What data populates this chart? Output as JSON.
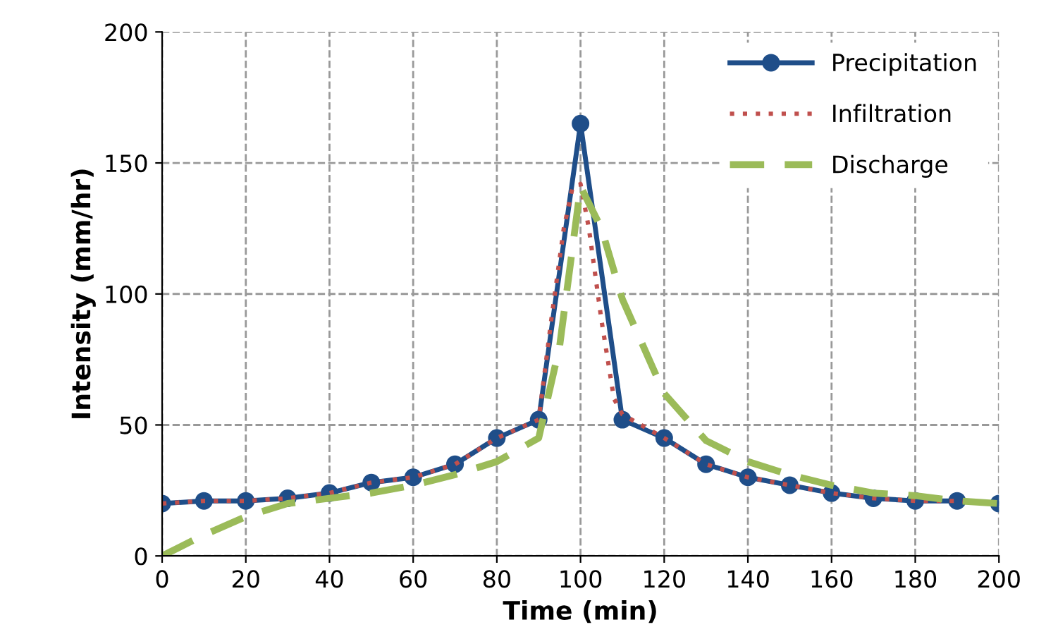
{
  "chart_data": {
    "type": "line",
    "xlabel": "Time (min)",
    "ylabel": "Intensity (mm/hr)",
    "xlim": [
      0,
      200
    ],
    "ylim": [
      0,
      200
    ],
    "xticks": [
      0,
      20,
      40,
      60,
      80,
      100,
      120,
      140,
      160,
      180,
      200
    ],
    "yticks": [
      0,
      50,
      100,
      150,
      200
    ],
    "grid": true,
    "legend": "top right",
    "series": [
      {
        "name": "Precipitation",
        "color": "#1f4e89",
        "marker": "circle",
        "line_style": "solid",
        "x": [
          0,
          10,
          20,
          30,
          40,
          50,
          60,
          70,
          80,
          90,
          100,
          110,
          120,
          130,
          140,
          150,
          160,
          170,
          180,
          190,
          200
        ],
        "values": [
          20,
          21,
          21,
          22,
          24,
          28,
          30,
          35,
          45,
          52,
          165,
          52,
          45,
          35,
          30,
          27,
          24,
          22,
          21,
          21,
          20
        ]
      },
      {
        "name": "Infiltration",
        "color": "#c0504d",
        "marker": "none",
        "line_style": "dotted",
        "x": [
          0,
          10,
          20,
          30,
          40,
          50,
          60,
          70,
          80,
          90,
          93,
          96,
          98,
          100,
          102,
          105,
          108,
          110,
          120,
          130,
          140,
          150,
          160,
          170,
          180,
          190,
          200
        ],
        "values": [
          20,
          21,
          21,
          22,
          24,
          28,
          30,
          35,
          45,
          52,
          90,
          125,
          140,
          142,
          125,
          90,
          60,
          54,
          45,
          35,
          30,
          27,
          24,
          22,
          21,
          21,
          20
        ]
      },
      {
        "name": "Discharge",
        "color": "#9bbb59",
        "marker": "none",
        "line_style": "dashed",
        "x": [
          0,
          10,
          20,
          30,
          40,
          50,
          60,
          70,
          80,
          90,
          95,
          100,
          105,
          110,
          120,
          130,
          140,
          150,
          160,
          170,
          180,
          190,
          200
        ],
        "values": [
          0,
          8,
          15,
          20,
          22,
          24,
          27,
          31,
          36,
          45,
          80,
          141,
          125,
          98,
          62,
          44,
          36,
          31,
          27,
          24,
          23,
          21,
          20
        ]
      }
    ]
  }
}
